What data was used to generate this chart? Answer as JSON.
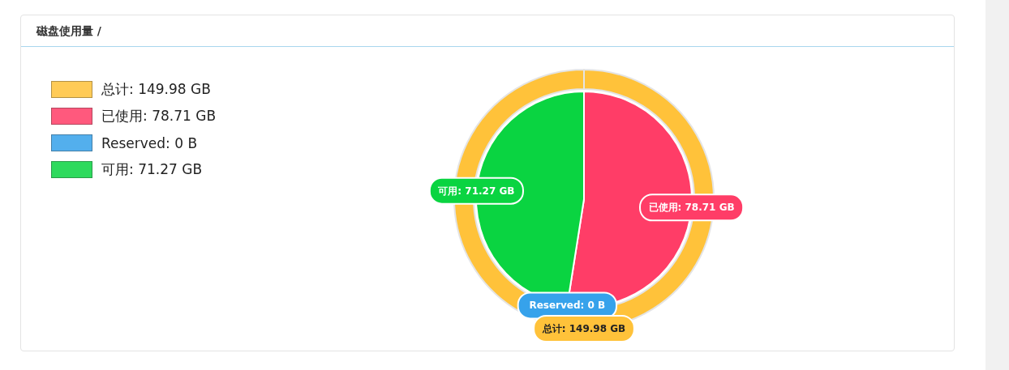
{
  "chart_data": {
    "type": "pie",
    "title": "磁盘使用量 /",
    "categories": [
      "总计: 149.98 GB",
      "已使用: 78.71 GB",
      "Reserved: 0 B",
      "可用: 71.27 GB"
    ],
    "colors": [
      "#ffc23a",
      "#ff3d67",
      "#36a2eb",
      "#0ad441"
    ],
    "series": [
      {
        "values": [
          null,
          78.71,
          0,
          71.27
        ]
      },
      {
        "type": "donut",
        "values": [
          149.98,
          null,
          null,
          null
        ]
      }
    ],
    "legend": "top left"
  }
}
